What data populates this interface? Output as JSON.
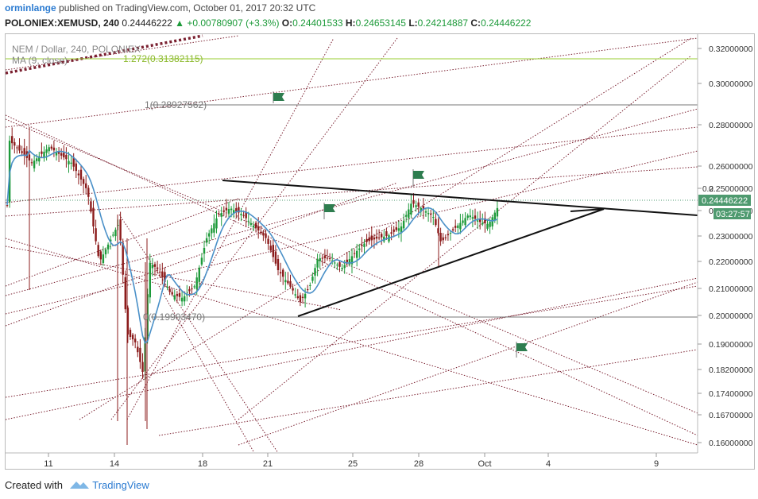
{
  "header": {
    "author": "orminlange",
    "published_text": "published on TradingView.com, October 01, 2017 20:32 UTC",
    "symbol": "POLONIEX:XEMUSD, 240",
    "last": "0.24446222",
    "change": "▲ +0.00780907 (+3.3%)",
    "ohlc": [
      {
        "label": "O:",
        "value": "0.24401533"
      },
      {
        "label": "H:",
        "value": "0.24653145"
      },
      {
        "label": "L:",
        "value": "0.24214887"
      },
      {
        "label": "C:",
        "value": "0.24446222"
      }
    ]
  },
  "legend": {
    "title": "NEM / Dollar, 240, POLONIEX",
    "ma": "MA (9, close)"
  },
  "fib_labels": {
    "level_1272": "1.272(0.31382115)",
    "level_1": "1(0.28927562)",
    "level_0": "0(0.19903470)"
  },
  "price_axis": {
    "ticks": [
      "0.32000000",
      "0.30000000",
      "0.28000000",
      "0.26000000",
      "0.25000000",
      "0.24000000",
      "0.23000000",
      "0.22000000",
      "0.21000000",
      "0.20000000",
      "0.19000000",
      "0.18200000",
      "0.17400000",
      "0.16700000",
      "0.16000000"
    ],
    "partial_tick": "0.2",
    "last_price_label": "0.24446222",
    "countdown_label": "03:27:57"
  },
  "time_axis": {
    "ticks": [
      "11",
      "14",
      "18",
      "21",
      "25",
      "28",
      "Oct",
      "4",
      "9"
    ]
  },
  "footer": {
    "created_with": "Created with",
    "brand": "TradingView"
  },
  "colors": {
    "up": "#1d9a3a",
    "down": "#8b1b1b",
    "ma": "#4a90c8",
    "fib_1272": "#9acd32",
    "dotted": "#7a2030",
    "flag": "#2e7d4f",
    "price_tag": "#4e9a6f"
  },
  "chart_data": {
    "type": "candlestick",
    "title": "NEM / Dollar, 240, POLONIEX",
    "series": [
      {
        "name": "MA (9, close)"
      }
    ],
    "ylim": [
      0.157,
      0.325
    ],
    "fibonacci": [
      {
        "label": "1.272",
        "value": 0.31382115
      },
      {
        "label": "1",
        "value": 0.28927562
      },
      {
        "label": "0",
        "value": 0.1990347
      }
    ],
    "last_price": 0.24446222
  }
}
